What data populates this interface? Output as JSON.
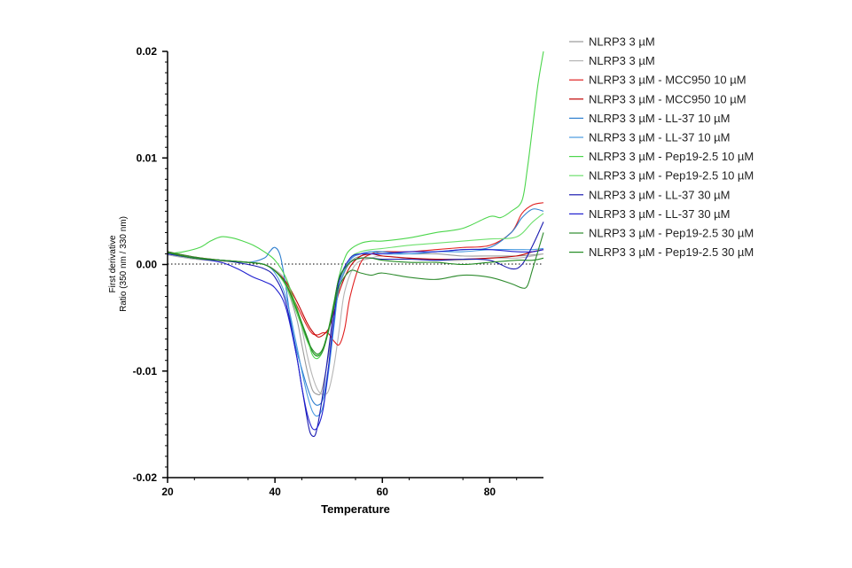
{
  "chart_data": {
    "type": "line",
    "xlabel": "Temperature",
    "ylabel_line1": "First derivative",
    "ylabel_line2": "Ratio (350 nm / 330 nm)",
    "xlim": [
      20,
      90
    ],
    "ylim": [
      -0.02,
      0.02
    ],
    "x_ticks": [
      "20",
      "40",
      "60",
      "80"
    ],
    "x_tick_values": [
      20,
      40,
      60,
      80
    ],
    "y_ticks": [
      "0.02",
      "0.01",
      "0.00",
      "-0.01",
      "-0.02"
    ],
    "y_tick_values": [
      0.02,
      0.01,
      0.0,
      -0.01,
      -0.02
    ],
    "zero_line": true,
    "grid": false,
    "legend_position": "right",
    "series": [
      {
        "name": "NLRP3 3 µM",
        "color": "#9a9a9a",
        "x": [
          20,
          25,
          30,
          35,
          38,
          40,
          42,
          44,
          45,
          46,
          47,
          48,
          48.5,
          49,
          50,
          51,
          52,
          54,
          56,
          58,
          60,
          65,
          70,
          75,
          80,
          85,
          88,
          90
        ],
        "y": [
          0.001,
          0.0006,
          0.0004,
          0.0002,
          0.0,
          -0.0006,
          -0.002,
          -0.005,
          -0.0075,
          -0.01,
          -0.0118,
          -0.0122,
          -0.0121,
          -0.0112,
          -0.0085,
          -0.005,
          -0.002,
          0.0002,
          0.0008,
          0.001,
          0.0012,
          0.001,
          0.001,
          0.0008,
          0.0008,
          0.0008,
          0.0009,
          0.001
        ]
      },
      {
        "name": "NLRP3 3 µM",
        "color": "#b5b5b5",
        "x": [
          20,
          25,
          30,
          35,
          38,
          40,
          42,
          44,
          45,
          46,
          47,
          48,
          49,
          50,
          51,
          52,
          53,
          55,
          58,
          60,
          65,
          70,
          75,
          80,
          85,
          88,
          90
        ],
        "y": [
          0.0009,
          0.0005,
          0.0003,
          0.0002,
          0.0,
          -0.0005,
          -0.0015,
          -0.004,
          -0.006,
          -0.0085,
          -0.0105,
          -0.0118,
          -0.0122,
          -0.0118,
          -0.0095,
          -0.006,
          -0.0025,
          0.0,
          0.0006,
          0.0008,
          0.0006,
          0.0004,
          0.0004,
          0.0006,
          0.0006,
          0.0008,
          0.001
        ]
      },
      {
        "name": "NLRP3 3 µM - MCC950 10 µM",
        "color": "#e02020",
        "x": [
          20,
          25,
          30,
          35,
          38,
          40,
          42,
          44,
          46,
          47,
          48,
          49,
          50,
          51,
          52,
          53,
          54,
          56,
          58,
          60,
          65,
          70,
          75,
          80,
          84,
          86,
          88,
          90
        ],
        "y": [
          0.0012,
          0.0007,
          0.0004,
          0.0002,
          0.0,
          -0.0006,
          -0.0018,
          -0.0038,
          -0.0058,
          -0.0065,
          -0.0066,
          -0.0064,
          -0.0065,
          -0.0072,
          -0.0075,
          -0.006,
          -0.003,
          0.0002,
          0.001,
          0.0012,
          0.0012,
          0.0014,
          0.0016,
          0.0018,
          0.003,
          0.0048,
          0.0056,
          0.0058
        ]
      },
      {
        "name": "NLRP3 3 µM - MCC950 10 µM",
        "color": "#c00000",
        "x": [
          20,
          25,
          30,
          35,
          38,
          40,
          42,
          44,
          46,
          47,
          48,
          49,
          50,
          51,
          52,
          54,
          56,
          58,
          60,
          65,
          70,
          75,
          80,
          85,
          88,
          90
        ],
        "y": [
          0.0011,
          0.0006,
          0.0004,
          0.0002,
          0.0,
          -0.0006,
          -0.0016,
          -0.0034,
          -0.0055,
          -0.0063,
          -0.0068,
          -0.0066,
          -0.006,
          -0.0045,
          -0.0025,
          -0.0002,
          0.0008,
          0.001,
          0.0008,
          0.0006,
          0.0005,
          0.0005,
          0.0006,
          0.0008,
          0.0012,
          0.0014
        ]
      },
      {
        "name": "NLRP3 3 µM - LL-37 10 µM",
        "color": "#2f7fcf",
        "x": [
          20,
          25,
          30,
          35,
          38,
          39,
          40,
          41,
          42,
          43,
          44,
          45,
          46,
          47,
          48,
          49,
          50,
          51,
          52,
          54,
          56,
          58,
          60,
          65,
          70,
          75,
          80,
          84,
          86,
          88,
          90
        ],
        "y": [
          0.001,
          0.0006,
          0.0004,
          0.0002,
          0.0006,
          0.0012,
          0.0016,
          0.0008,
          -0.002,
          -0.0055,
          -0.008,
          -0.0098,
          -0.0115,
          -0.0128,
          -0.0132,
          -0.0125,
          -0.0095,
          -0.0055,
          -0.002,
          0.0004,
          0.001,
          0.0012,
          0.0012,
          0.001,
          0.0012,
          0.0014,
          0.0016,
          0.003,
          0.0044,
          0.0052,
          0.005
        ]
      },
      {
        "name": "NLRP3 3 µM - LL-37 10 µM",
        "color": "#4a9be0",
        "x": [
          20,
          25,
          30,
          35,
          38,
          40,
          42,
          44,
          45,
          46,
          47,
          48,
          49,
          50,
          51,
          52,
          54,
          56,
          58,
          60,
          65,
          70,
          75,
          80,
          85,
          88,
          90
        ],
        "y": [
          0.001,
          0.0006,
          0.0004,
          0.0002,
          0.0,
          -0.0008,
          -0.003,
          -0.0075,
          -0.01,
          -0.0122,
          -0.0138,
          -0.0142,
          -0.0132,
          -0.01,
          -0.0058,
          -0.002,
          0.0004,
          0.001,
          0.0012,
          0.001,
          0.001,
          0.0012,
          0.0012,
          0.0014,
          0.0014,
          0.0014,
          0.0015
        ]
      },
      {
        "name": "NLRP3 3 µM - Pep19-2.5 10 µM",
        "color": "#4cd64c",
        "x": [
          20,
          23,
          26,
          28,
          30,
          32,
          34,
          36,
          38,
          40,
          42,
          44,
          46,
          47,
          48,
          49,
          50,
          51,
          52,
          53,
          54,
          56,
          58,
          60,
          65,
          70,
          75,
          80,
          82,
          84,
          86,
          87,
          88,
          89,
          90
        ],
        "y": [
          0.001,
          0.0012,
          0.0016,
          0.0022,
          0.0026,
          0.0025,
          0.0022,
          0.0018,
          0.0012,
          0.0004,
          -0.0012,
          -0.004,
          -0.007,
          -0.0085,
          -0.0088,
          -0.008,
          -0.006,
          -0.0035,
          -0.001,
          0.0006,
          0.0014,
          0.002,
          0.0022,
          0.0022,
          0.0025,
          0.003,
          0.0034,
          0.0045,
          0.0044,
          0.005,
          0.006,
          0.009,
          0.013,
          0.017,
          0.02
        ]
      },
      {
        "name": "NLRP3 3 µM - Pep19-2.5 10 µM",
        "color": "#6ee06e",
        "x": [
          20,
          25,
          30,
          35,
          38,
          40,
          42,
          44,
          46,
          47,
          48,
          49,
          50,
          51,
          52,
          54,
          56,
          58,
          60,
          65,
          70,
          75,
          80,
          85,
          88,
          90
        ],
        "y": [
          0.001,
          0.0006,
          0.0004,
          0.0002,
          0.0,
          -0.0006,
          -0.002,
          -0.0045,
          -0.0072,
          -0.0082,
          -0.0085,
          -0.0078,
          -0.006,
          -0.0038,
          -0.0015,
          0.0006,
          0.0012,
          0.0014,
          0.0015,
          0.0018,
          0.002,
          0.0022,
          0.0024,
          0.0026,
          0.004,
          0.0048
        ]
      },
      {
        "name": "NLRP3 3 µM - LL-37 30 µM",
        "color": "#1a1ab0",
        "x": [
          20,
          25,
          30,
          35,
          38,
          40,
          42,
          44,
          45,
          46,
          46.5,
          47,
          47.5,
          48,
          48.5,
          49,
          50,
          51,
          52,
          54,
          56,
          58,
          60,
          65,
          70,
          75,
          80,
          84,
          86,
          88,
          90
        ],
        "y": [
          0.001,
          0.0006,
          0.0004,
          0.0,
          -0.0004,
          -0.0012,
          -0.0035,
          -0.0085,
          -0.0115,
          -0.0145,
          -0.0157,
          -0.0161,
          -0.016,
          -0.015,
          -0.0135,
          -0.0118,
          -0.008,
          -0.004,
          -0.0012,
          0.0002,
          0.0006,
          0.0006,
          0.0005,
          0.0005,
          0.0004,
          0.0005,
          0.0004,
          -0.0004,
          0.0,
          0.0018,
          0.004
        ]
      },
      {
        "name": "NLRP3 3 µM - LL-37 30 µM",
        "color": "#2020d0",
        "x": [
          20,
          25,
          30,
          33,
          36,
          38,
          40,
          42,
          44,
          45,
          46,
          47,
          48,
          49,
          50,
          51,
          52,
          54,
          56,
          58,
          60,
          65,
          70,
          75,
          80,
          85,
          88,
          90
        ],
        "y": [
          0.001,
          0.0006,
          0.0002,
          -0.0004,
          -0.0012,
          -0.0016,
          -0.0022,
          -0.004,
          -0.0085,
          -0.0115,
          -0.014,
          -0.0154,
          -0.0152,
          -0.0135,
          -0.0095,
          -0.005,
          -0.0015,
          0.0006,
          0.001,
          0.001,
          0.001,
          0.0012,
          0.0012,
          0.0014,
          0.0014,
          0.0012,
          0.0012,
          0.0014
        ]
      },
      {
        "name": "NLRP3 3 µM - Pep19-2.5 30 µM",
        "color": "#2e8b2e",
        "x": [
          20,
          25,
          30,
          35,
          38,
          40,
          42,
          44,
          46,
          47,
          48,
          49,
          50,
          51,
          52,
          54,
          56,
          58,
          60,
          65,
          70,
          75,
          80,
          84,
          86,
          87,
          88,
          90
        ],
        "y": [
          0.0012,
          0.0007,
          0.0004,
          0.0002,
          0.0,
          -0.0006,
          -0.0018,
          -0.0042,
          -0.0068,
          -0.0082,
          -0.0086,
          -0.008,
          -0.0062,
          -0.004,
          -0.002,
          -0.0006,
          -0.0008,
          -0.001,
          -0.0008,
          -0.0012,
          -0.0014,
          -0.001,
          -0.0012,
          -0.0018,
          -0.0022,
          -0.002,
          -0.0004,
          0.003
        ]
      },
      {
        "name": "NLRP3 3 µM - Pep19-2.5 30 µM",
        "color": "#228b22",
        "x": [
          20,
          25,
          30,
          35,
          38,
          40,
          42,
          44,
          46,
          47,
          48,
          49,
          50,
          51,
          52,
          54,
          56,
          58,
          60,
          65,
          70,
          75,
          80,
          85,
          88,
          90
        ],
        "y": [
          0.0011,
          0.0006,
          0.0004,
          0.0002,
          0.0,
          -0.0006,
          -0.0018,
          -0.0042,
          -0.007,
          -0.008,
          -0.0084,
          -0.0078,
          -0.006,
          -0.0036,
          -0.0012,
          0.0002,
          0.0006,
          0.0006,
          0.0004,
          0.0002,
          0.0002,
          0.0,
          0.0002,
          0.0004,
          0.0004,
          0.0006
        ]
      }
    ]
  }
}
